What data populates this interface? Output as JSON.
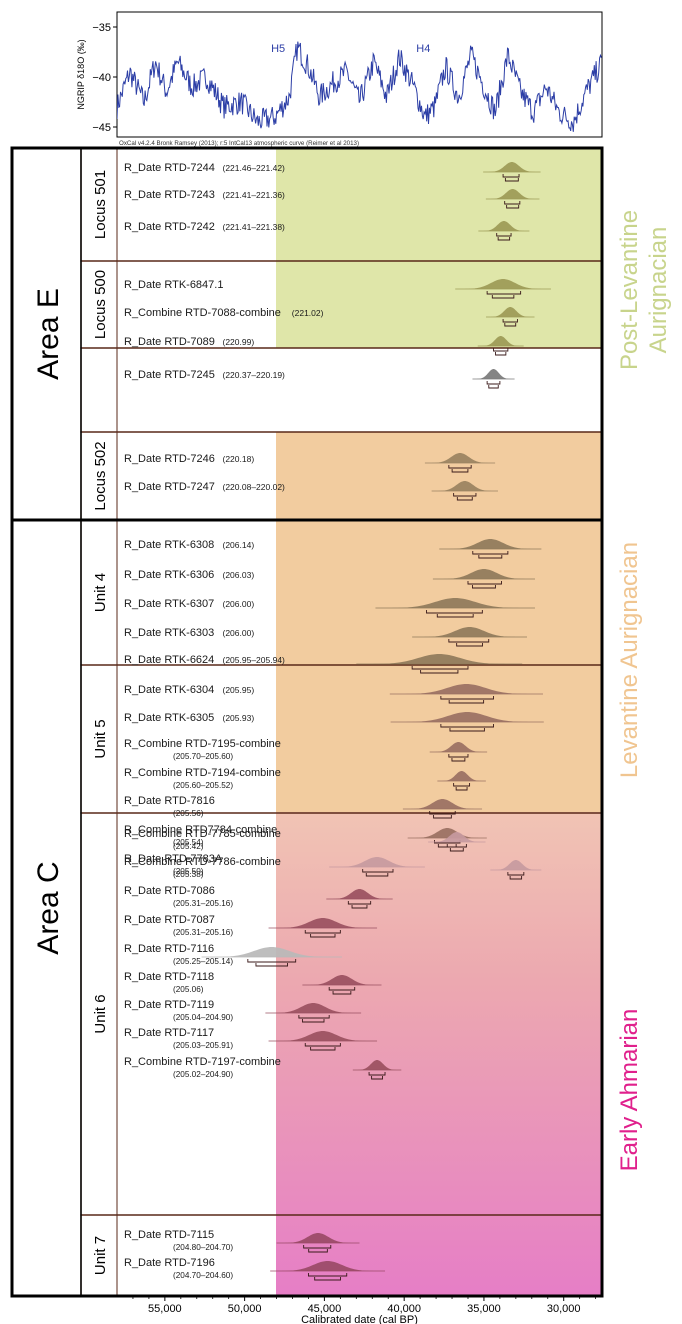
{
  "chart_data": {
    "type": "other",
    "title": "",
    "xlabel": "Calibrated date (cal BP)",
    "x_ticks": [
      55000,
      50000,
      45000,
      40000,
      35000,
      30000
    ],
    "x_tick_labels": [
      "55,000",
      "50,000",
      "45,000",
      "40,000",
      "35,000",
      "30,000"
    ],
    "xlim": [
      58000,
      27600
    ],
    "axis_reversed": true,
    "calibration_note": "OxCal v4.2.4 Bronk Ramsey (2013); r:5 IntCal13 atmospheric curve (Reimer et al 2013)",
    "colors": {
      "green": "#dfe6a9",
      "orange": "#f2cc9f",
      "pink": "#e97fc1",
      "pink_top": "#f1c4b4",
      "band_text_green": "#c8d48c",
      "band_text_orange": "#f0c590",
      "band_text_pink": "#e0208c",
      "ngrip_line": "#2c3ea6",
      "frame": "#000000",
      "section_line": "#5a2a1a"
    },
    "ngrip": {
      "ylabel": "NGRIP δ18O (‰)",
      "y_ticks": [
        -35,
        -40,
        -45
      ],
      "y_tick_labels": [
        "−35",
        "−40",
        "−45"
      ],
      "ylim": [
        -46,
        -33.5
      ],
      "events": [
        {
          "label": "H5",
          "x": 47900
        },
        {
          "label": "H4",
          "x": 38800
        }
      ]
    },
    "bands": [
      {
        "label": "Post-Levantine Aurignacian",
        "color_key": "green"
      },
      {
        "label": "Levantine Aurignacian",
        "color_key": "orange"
      },
      {
        "label": "Early Ahmarian",
        "color_key": "pink"
      }
    ],
    "areas": [
      {
        "label": "Area E",
        "groups": [
          {
            "label": "Locus 501",
            "band": 0,
            "dates": [
              {
                "name": "R_Date RTD-7244",
                "range": "(221.46–221.42)",
                "peak": 33250,
                "sd": 450,
                "hpd": [
                  33800,
                  32800
                ],
                "color": "#9c9a56"
              },
              {
                "name": "R_Date RTD-7243",
                "range": "(221.41–221.36)",
                "peak": 33200,
                "sd": 420,
                "hpd": [
                  33700,
                  32750
                ],
                "color": "#9c9a56"
              },
              {
                "name": "R_Date RTD-7242",
                "range": "(221.41–221.38)",
                "peak": 33750,
                "sd": 400,
                "hpd": [
                  34200,
                  33300
                ],
                "color": "#9c9a56"
              }
            ]
          },
          {
            "label": "Locus 500",
            "band": 0,
            "dates": [
              {
                "name": "R_Date RTK-6847.1",
                "range": "",
                "peak": 33800,
                "sd": 750,
                "hpd": [
                  34800,
                  32700
                ],
                "color": "#9c9a56"
              },
              {
                "name": "R_Combine RTD-7088-combine",
                "range": "(221.02)",
                "peak": 33350,
                "sd": 380,
                "hpd": [
                  33800,
                  32900
                ],
                "color": "#9c9a56"
              },
              {
                "name": "R_Date RTD-7089",
                "range": "(220.99)",
                "peak": 33950,
                "sd": 360,
                "hpd": [
                  34400,
                  33500
                ],
                "color": "#9c9a56"
              }
            ]
          },
          {
            "label": "",
            "band": -1,
            "dates": [
              {
                "name": "R_Date RTD-7245",
                "range": "(220.37–220.19)",
                "peak": 34400,
                "sd": 330,
                "hpd": [
                  34800,
                  34000
                ],
                "color": "#7a7a7a"
              }
            ]
          },
          {
            "label": "Locus 502",
            "band": 1,
            "dates": [
              {
                "name": "R_Date RTD-7246",
                "range": "(220.18)",
                "peak": 36500,
                "sd": 550,
                "hpd": [
                  37200,
                  35800
                ],
                "color": "#9a8260"
              },
              {
                "name": "R_Date RTD-7247",
                "range": "(220.08–220.02)",
                "peak": 36200,
                "sd": 520,
                "hpd": [
                  36900,
                  35500
                ],
                "color": "#9a8260"
              }
            ]
          }
        ]
      },
      {
        "label": "Area C",
        "groups": [
          {
            "label": "Unit 4",
            "band": 1,
            "dates": [
              {
                "name": "R_Date RTK-6308",
                "range": "(206.14)",
                "peak": 34600,
                "sd": 800,
                "hpd": [
                  35700,
                  33500
                ],
                "color": "#8f7a5a"
              },
              {
                "name": "R_Date RTK-6306",
                "range": "(206.03)",
                "peak": 35000,
                "sd": 800,
                "hpd": [
                  36000,
                  33900
                ],
                "color": "#8f7a5a"
              },
              {
                "name": "R_Date RTK-6307",
                "range": "(206.00)",
                "peak": 36800,
                "sd": 1250,
                "hpd": [
                  38600,
                  35100
                ],
                "color": "#8f7a5a"
              },
              {
                "name": "R_Date RTK-6303",
                "range": "(206.00)",
                "peak": 35900,
                "sd": 900,
                "hpd": [
                  37200,
                  34700
                ],
                "color": "#8f7a5a"
              },
              {
                "name": "R_Date RTK-6624",
                "range": "(205.95–205.94)",
                "peak": 37800,
                "sd": 1300,
                "hpd": [
                  39500,
                  36000
                ],
                "color": "#8f7a5a"
              }
            ]
          },
          {
            "label": "Unit 5",
            "band": 1,
            "dates": [
              {
                "name": "R_Date RTK-6304",
                "range": "(205.95)",
                "peak": 36100,
                "sd": 1200,
                "hpd": [
                  37700,
                  34400
                ],
                "color": "#9a7062"
              },
              {
                "name": "R_Date RTK-6305",
                "range": "(205.93)",
                "peak": 36050,
                "sd": 1200,
                "hpd": [
                  37700,
                  34400
                ],
                "color": "#9a7062"
              },
              {
                "name": "R_Combine RTD-7195-combine",
                "range": "(205.70–205.60)",
                "peak": 36600,
                "sd": 450,
                "hpd": [
                  37200,
                  36000
                ],
                "color": "#9a7062"
              },
              {
                "name": "R_Combine RTD-7194-combine",
                "range": "(205.60–205.52)",
                "peak": 36400,
                "sd": 380,
                "hpd": [
                  36900,
                  35900
                ],
                "color": "#9a7062"
              },
              {
                "name": "R_Date RTD-7816",
                "range": "(205.56)",
                "peak": 37600,
                "sd": 620,
                "hpd": [
                  38400,
                  36800
                ],
                "color": "#9a7062"
              },
              {
                "name": "R_Combine RTD7784-combine",
                "range": "(205.54)",
                "peak": 37300,
                "sd": 620,
                "hpd": [
                  38100,
                  36500
                ],
                "color": "#9a7062"
              },
              {
                "name": "R_Date RTD-7783A",
                "range": "(205.50)",
                "peak": 41700,
                "sd": 750,
                "hpd": [
                  42600,
                  40700
                ],
                "color": "#c79aa0"
              }
            ]
          },
          {
            "label": "Unit 6",
            "band": 2,
            "dates": [
              {
                "name": "R_Combine RTD-7785-combine",
                "range": "(205.42)",
                "peak": 36700,
                "sd": 450,
                "hpd": [
                  37300,
                  36100
                ],
                "color": "#c79aa0"
              },
              {
                "name": "R_Combine RTD-7786-combine",
                "range": "(205.38)",
                "peak": 33000,
                "sd": 400,
                "hpd": [
                  33500,
                  32500
                ],
                "color": "#c79aa0"
              },
              {
                "name": "R_Date RTD-7086",
                "range": "(205.31–205.16)",
                "peak": 42800,
                "sd": 520,
                "hpd": [
                  43500,
                  42100
                ],
                "color": "#9a5060"
              },
              {
                "name": "R_Date RTD-7087",
                "range": "(205.31–205.16)",
                "peak": 45100,
                "sd": 850,
                "hpd": [
                  46200,
                  44000
                ],
                "color": "#9a5060"
              },
              {
                "name": "R_Date RTD-7116",
                "range": "(205.25–205.14)",
                "peak": 48300,
                "sd": 1100,
                "hpd": [
                  49800,
                  46800
                ],
                "color": "#b8b8b8"
              },
              {
                "name": "R_Date RTD-7118",
                "range": "(205.06)",
                "peak": 43900,
                "sd": 620,
                "hpd": [
                  44700,
                  43100
                ],
                "color": "#9a5060"
              },
              {
                "name": "R_Date RTD-7119",
                "range": "(205.04–204.90)",
                "peak": 45700,
                "sd": 750,
                "hpd": [
                  46600,
                  44700
                ],
                "color": "#9a5060"
              },
              {
                "name": "R_Date RTD-7117",
                "range": "(205.03–205.91)",
                "peak": 45100,
                "sd": 850,
                "hpd": [
                  46200,
                  44000
                ],
                "color": "#9a5060"
              },
              {
                "name": "R_Combine RTD-7197-combine",
                "range": "(205.02–204.90)",
                "peak": 41700,
                "sd": 380,
                "hpd": [
                  42200,
                  41200
                ],
                "color": "#9a5060"
              }
            ]
          },
          {
            "label": "Unit 7",
            "band": 2,
            "dates": [
              {
                "name": "R_Date RTD-7115",
                "range": "(204.80–204.70)",
                "peak": 45400,
                "sd": 650,
                "hpd": [
                  46300,
                  44600
                ],
                "color": "#9a4a66"
              },
              {
                "name": "R_Date RTD-7196",
                "range": "(204.70–204.60)",
                "peak": 44800,
                "sd": 900,
                "hpd": [
                  46000,
                  43600
                ],
                "color": "#9a4a66"
              }
            ]
          }
        ]
      }
    ]
  }
}
